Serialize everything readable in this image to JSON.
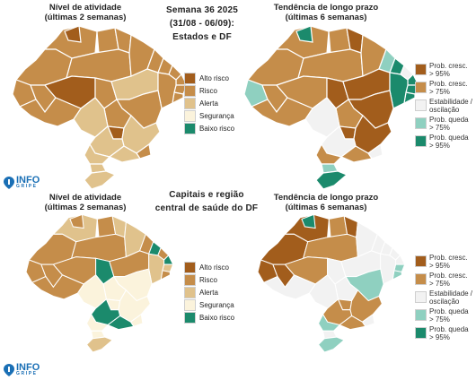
{
  "top": {
    "activity_title_line1": "Nível de atividade",
    "activity_title_line2": "(últimas 2 semanas)",
    "center_line1": "Semana 36 2025",
    "center_line2": "(31/08 - 06/09):",
    "center_line3": "Estados e DF",
    "trend_title_line1": "Tendência de longo prazo",
    "trend_title_line2": "(últimas 6 semanas)"
  },
  "bottom": {
    "activity_title_line1": "Nível de atividade",
    "activity_title_line2": "(últimas 2 semanas)",
    "center_line1": "Capitais e região",
    "center_line2": "central de saúde do DF",
    "trend_title_line1": "Tendência de longo prazo",
    "trend_title_line2": "(últimas 6 semanas)"
  },
  "activity_legend": [
    {
      "label": "Alto risco",
      "color": "#a25d1c"
    },
    {
      "label": "Risco",
      "color": "#c58d4a"
    },
    {
      "label": "Alerta",
      "color": "#e0c28c"
    },
    {
      "label": "Segurança",
      "color": "#fbf3dc"
    },
    {
      "label": "Baixo risco",
      "color": "#1b8a6c"
    }
  ],
  "trend_legend": [
    {
      "line1": "Prob. cresc.",
      "line2": "> 95%",
      "color": "#a25d1c"
    },
    {
      "line1": "Prob. cresc.",
      "line2": "> 75%",
      "color": "#c58d4a"
    },
    {
      "line1": "Estabilidade /",
      "line2": "oscilação",
      "color": "#f2f2f2"
    },
    {
      "line1": "Prob. queda",
      "line2": "> 75%",
      "color": "#8fd0c0"
    },
    {
      "line1": "Prob. queda",
      "line2": "> 95%",
      "color": "#1b8a6c"
    }
  ],
  "logo": {
    "name": "INFO",
    "sub": "GRIPE"
  }
}
